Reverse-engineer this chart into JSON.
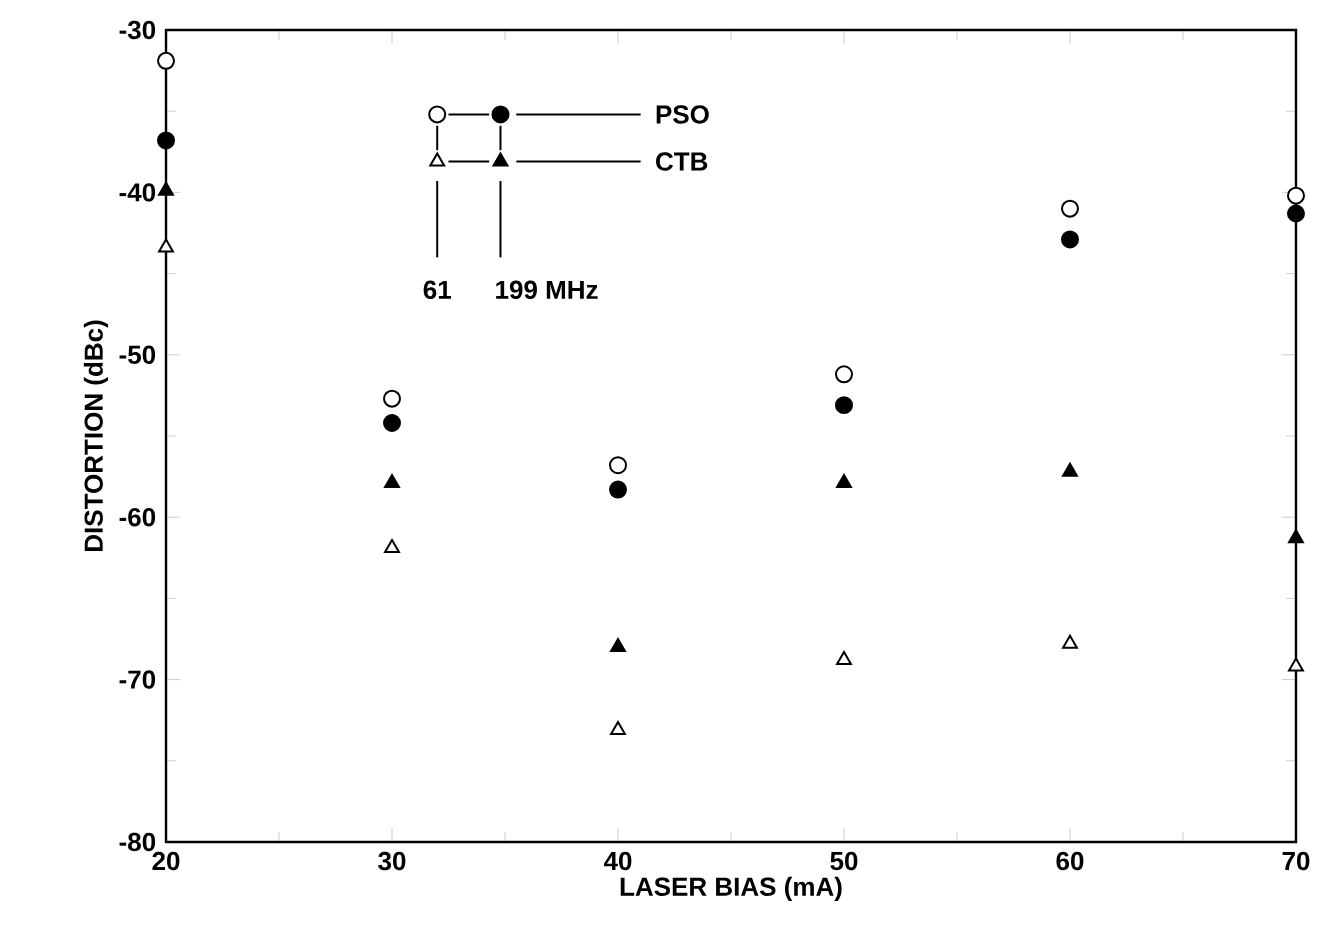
{
  "chart_data": {
    "type": "scatter",
    "xlabel": "LASER BIAS (mA)",
    "ylabel": "DISTORTION (dBc)",
    "x": [
      20,
      30,
      40,
      50,
      60,
      70
    ],
    "series": [
      {
        "color": "#ffffff",
        "marker": "circle",
        "values": [
          -31.9,
          -52.7,
          -56.8,
          -51.2,
          -41.0,
          -40.2
        ]
      },
      {
        "color": "#000000",
        "marker": "circle",
        "values": [
          -36.8,
          -54.2,
          -58.3,
          -53.1,
          -42.9,
          -41.3
        ]
      },
      {
        "color": "#000000",
        "marker": "triangle",
        "values": [
          -39.9,
          -57.9,
          -68.0,
          -57.9,
          -57.2,
          -61.3
        ]
      },
      {
        "color": "#ffffff",
        "marker": "triangle",
        "values": [
          -43.4,
          -61.9,
          -73.1,
          -68.8,
          -67.8,
          -69.2
        ]
      }
    ],
    "annotations": [
      "PSO",
      "CTB",
      "61",
      "199 MHz"
    ],
    "xlim": [
      20,
      70
    ],
    "xticks": [
      20,
      30,
      40,
      50,
      60,
      70
    ],
    "ylim": [
      -80,
      -30
    ],
    "yticks": [
      -80,
      -70,
      -60,
      -50,
      -40,
      -30
    ]
  }
}
